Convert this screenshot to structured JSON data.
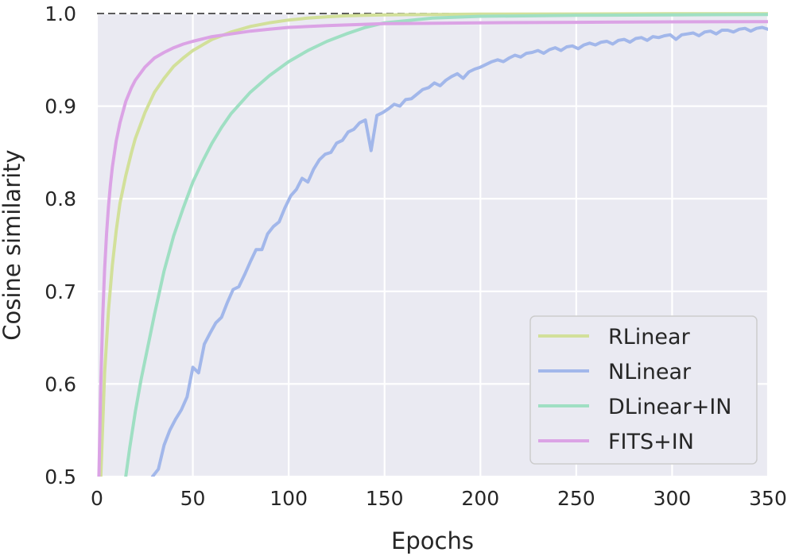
{
  "chart_data": {
    "type": "line",
    "title": "",
    "xlabel": "Epochs",
    "ylabel": "Cosine similarity",
    "xlim": [
      0,
      350
    ],
    "ylim": [
      0.5,
      1.0
    ],
    "x_ticks": [
      0,
      50,
      100,
      150,
      200,
      250,
      300,
      350
    ],
    "y_ticks": [
      0.5,
      0.6,
      0.7,
      0.8,
      0.9,
      1.0
    ],
    "x_tick_labels": [
      "0",
      "50",
      "100",
      "150",
      "200",
      "250",
      "300",
      "350"
    ],
    "y_tick_labels": [
      "0.5",
      "0.6",
      "0.7",
      "0.8",
      "0.9",
      "1.0"
    ],
    "grid": true,
    "legend_position": "bottom-right",
    "reference_line": {
      "y": 1.0,
      "style": "dashed",
      "color": "#262626"
    },
    "colors": {
      "background": "#eaeaf2",
      "grid": "#ffffff"
    },
    "series": [
      {
        "name": "RLinear",
        "color": "#d2e09a",
        "x": [
          2,
          4,
          6,
          8,
          10,
          12,
          15,
          18,
          20,
          25,
          30,
          35,
          40,
          45,
          50,
          60,
          70,
          80,
          90,
          100,
          110,
          120,
          130,
          140,
          150,
          175,
          200,
          250,
          300,
          350
        ],
        "y": [
          0.5,
          0.612,
          0.68,
          0.728,
          0.765,
          0.795,
          0.825,
          0.85,
          0.865,
          0.893,
          0.915,
          0.93,
          0.943,
          0.952,
          0.96,
          0.972,
          0.98,
          0.986,
          0.99,
          0.993,
          0.995,
          0.9965,
          0.9975,
          0.998,
          0.9985,
          0.999,
          0.9993,
          0.9995,
          0.9997,
          0.9998
        ]
      },
      {
        "name": "NLinear",
        "color": "#a2b7ea",
        "x": [
          29,
          32,
          35,
          38,
          41,
          44,
          47,
          50,
          53,
          56,
          59,
          62,
          65,
          68,
          71,
          74,
          77,
          80,
          83,
          86,
          89,
          92,
          95,
          98,
          101,
          104,
          107,
          110,
          113,
          116,
          119,
          122,
          125,
          128,
          131,
          134,
          137,
          140,
          143,
          146,
          149,
          152,
          155,
          158,
          161,
          164,
          167,
          170,
          173,
          176,
          179,
          182,
          185,
          188,
          191,
          194,
          197,
          200,
          203,
          206,
          209,
          212,
          215,
          218,
          221,
          224,
          227,
          230,
          233,
          236,
          239,
          242,
          245,
          248,
          251,
          254,
          257,
          260,
          263,
          266,
          269,
          272,
          275,
          278,
          281,
          284,
          287,
          290,
          293,
          296,
          299,
          302,
          305,
          308,
          311,
          314,
          317,
          320,
          323,
          326,
          329,
          332,
          335,
          338,
          341,
          344,
          347,
          350
        ],
        "y": [
          0.5,
          0.508,
          0.534,
          0.55,
          0.562,
          0.572,
          0.586,
          0.618,
          0.612,
          0.643,
          0.655,
          0.666,
          0.672,
          0.688,
          0.702,
          0.705,
          0.718,
          0.732,
          0.745,
          0.745,
          0.762,
          0.77,
          0.775,
          0.79,
          0.803,
          0.81,
          0.822,
          0.818,
          0.832,
          0.842,
          0.848,
          0.85,
          0.86,
          0.863,
          0.872,
          0.875,
          0.882,
          0.885,
          0.852,
          0.89,
          0.893,
          0.897,
          0.902,
          0.9,
          0.907,
          0.908,
          0.913,
          0.918,
          0.92,
          0.925,
          0.922,
          0.928,
          0.932,
          0.935,
          0.93,
          0.937,
          0.94,
          0.942,
          0.945,
          0.948,
          0.95,
          0.948,
          0.952,
          0.955,
          0.953,
          0.957,
          0.958,
          0.96,
          0.957,
          0.961,
          0.963,
          0.96,
          0.964,
          0.965,
          0.962,
          0.966,
          0.968,
          0.966,
          0.969,
          0.97,
          0.967,
          0.971,
          0.972,
          0.969,
          0.973,
          0.974,
          0.971,
          0.975,
          0.974,
          0.976,
          0.977,
          0.972,
          0.977,
          0.978,
          0.979,
          0.976,
          0.98,
          0.981,
          0.978,
          0.982,
          0.982,
          0.98,
          0.983,
          0.984,
          0.981,
          0.984,
          0.985,
          0.983
        ]
      },
      {
        "name": "DLinear+IN",
        "color": "#9fdfc3",
        "x": [
          15,
          17,
          20,
          23,
          25,
          28,
          30,
          35,
          40,
          45,
          50,
          55,
          60,
          65,
          70,
          80,
          90,
          100,
          110,
          120,
          130,
          140,
          150,
          175,
          200,
          250,
          300,
          350
        ],
        "y": [
          0.5,
          0.53,
          0.57,
          0.605,
          0.625,
          0.655,
          0.675,
          0.722,
          0.76,
          0.79,
          0.818,
          0.84,
          0.86,
          0.877,
          0.892,
          0.915,
          0.933,
          0.948,
          0.96,
          0.97,
          0.978,
          0.985,
          0.99,
          0.995,
          0.997,
          0.998,
          0.9985,
          0.999
        ]
      },
      {
        "name": "FITS+IN",
        "color": "#dba3e5",
        "x": [
          1,
          2,
          3,
          4,
          5,
          6,
          7,
          8,
          10,
          12,
          15,
          18,
          20,
          25,
          30,
          35,
          40,
          45,
          50,
          60,
          70,
          80,
          90,
          100,
          120,
          150,
          200,
          250,
          300,
          350
        ],
        "y": [
          0.5,
          0.6,
          0.672,
          0.724,
          0.763,
          0.792,
          0.815,
          0.834,
          0.862,
          0.882,
          0.905,
          0.92,
          0.928,
          0.942,
          0.952,
          0.958,
          0.963,
          0.967,
          0.97,
          0.975,
          0.978,
          0.981,
          0.983,
          0.985,
          0.987,
          0.989,
          0.99,
          0.9905,
          0.991,
          0.9912
        ]
      }
    ]
  }
}
